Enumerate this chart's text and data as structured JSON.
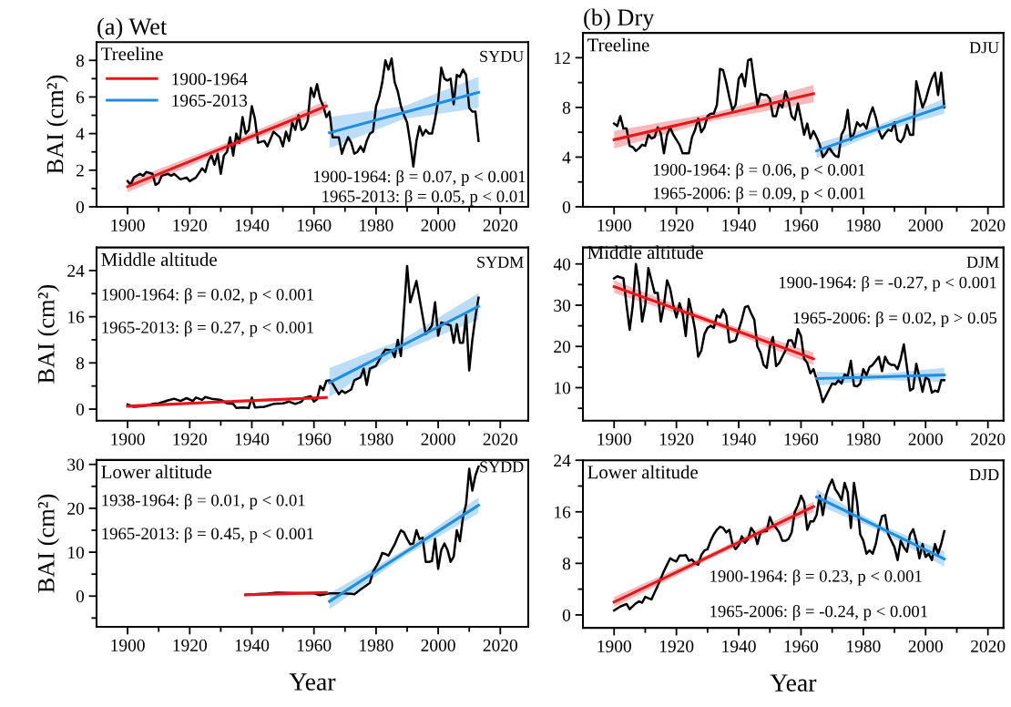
{
  "chart_data": [
    {
      "type": "line",
      "title": "(a) Wet",
      "ylabel": "BAI (cm²)",
      "xlim": [
        1890,
        2029
      ],
      "ylim": [
        0,
        9
      ],
      "xticks": [
        1900,
        {
          "value": 1910,
          "label": null
        },
        1920,
        {
          "value": 1930,
          "label": null
        },
        1940,
        {
          "value": 1950,
          "label": null
        },
        1960,
        {
          "value": 1970,
          "label": null
        },
        1980,
        {
          "value": 1990,
          "label": null
        },
        2000,
        {
          "value": 2010,
          "label": null
        },
        2020
      ],
      "yticks": [
        0,
        {
          "value": 1,
          "label": null
        },
        2,
        {
          "value": 3,
          "label": null
        },
        4,
        {
          "value": 5,
          "label": null
        },
        6,
        {
          "value": 7,
          "label": null
        },
        8
      ],
      "legend": "top left",
      "annotations": [
        "Treeline",
        "SYDU",
        "1900-1964: β = 0.07, p < 0.001",
        "1965-2013: β = 0.05, p < 0.01"
      ],
      "series": [
        {
          "type": "line",
          "color": "#000000",
          "x": [
            1900,
            1901,
            1902,
            1904,
            1905,
            1906,
            1908,
            1909,
            1910,
            1911,
            1913,
            1914,
            1915,
            1917,
            1919,
            1920,
            1922,
            1924,
            1925,
            1926,
            1927,
            1928,
            1929,
            1930,
            1931,
            1932,
            1933,
            1934,
            1935,
            1936,
            1937,
            1938,
            1939,
            1940,
            1941,
            1942,
            1944,
            1945,
            1947,
            1949,
            1950,
            1951,
            1952,
            1953,
            1954,
            1955,
            1956,
            1957,
            1958,
            1959,
            1960,
            1961,
            1962,
            1963,
            1964,
            1965,
            1966,
            1968,
            1969,
            1970,
            1971,
            1972,
            1973,
            1974,
            1975,
            1976,
            1977,
            1978,
            1979,
            1980,
            1981,
            1982,
            1983,
            1984,
            1985,
            1986,
            1987,
            1988,
            1989,
            1990,
            1991,
            1992,
            1993,
            1994,
            1995,
            1996,
            1997,
            1998,
            1999,
            2000,
            2001,
            2002,
            2003,
            2004,
            2005,
            2006,
            2007,
            2008,
            2009,
            2010,
            2011,
            2012,
            2013
          ],
          "values": [
            1.4,
            1.2,
            1.6,
            1.8,
            1.7,
            1.9,
            1.8,
            1.2,
            1.3,
            1.7,
            1.8,
            1.7,
            1.8,
            1.5,
            1.6,
            1.4,
            1.6,
            2.1,
            1.9,
            2.5,
            2.8,
            2.3,
            2.9,
            1.8,
            2.8,
            3.0,
            3.8,
            2.8,
            4.0,
            3.5,
            4.9,
            4.0,
            4.2,
            5.5,
            4.8,
            3.5,
            3.6,
            3.3,
            4.1,
            3.8,
            3.3,
            4.1,
            3.6,
            4.6,
            4.2,
            5.0,
            4.2,
            4.3,
            4.7,
            6.5,
            6.0,
            6.7,
            5.9,
            5.5,
            4.9,
            5.2,
            3.8,
            3.8,
            2.9,
            3.4,
            3.8,
            3.5,
            2.9,
            3.0,
            3.3,
            3.0,
            3.6,
            4.0,
            4.1,
            5.5,
            6.0,
            6.8,
            8.0,
            7.5,
            8.1,
            6.8,
            6.3,
            5.5,
            5.0,
            4.6,
            3.5,
            2.2,
            3.6,
            4.4,
            3.9,
            4.2,
            4.0,
            4.0,
            4.8,
            5.8,
            7.6,
            7.0,
            6.9,
            7.0,
            5.6,
            7.2,
            7.1,
            7.5,
            7.2,
            5.4,
            5.2,
            5.2,
            3.6
          ]
        },
        {
          "type": "line",
          "name": "1900-1964",
          "color": "#e8161b",
          "x": [
            1900,
            1932,
            1964
          ],
          "values": [
            1.1,
            3.3,
            5.5
          ],
          "lower": [
            0.8,
            3.1,
            5.2
          ],
          "upper": [
            1.4,
            3.5,
            5.8
          ]
        },
        {
          "type": "line",
          "name": "1965-2013",
          "color": "#1e8ee0",
          "x": [
            1965,
            1989,
            2013
          ],
          "values": [
            4.05,
            5.15,
            6.25
          ],
          "lower": [
            3.2,
            4.8,
            5.4
          ],
          "upper": [
            4.9,
            5.5,
            7.1
          ]
        }
      ]
    },
    {
      "type": "line",
      "title": "(b) Dry",
      "xlim": [
        1890,
        2025
      ],
      "ylim": [
        0,
        14
      ],
      "xticks": [
        1900,
        {
          "value": 1910,
          "label": null
        },
        1920,
        {
          "value": 1930,
          "label": null
        },
        1940,
        {
          "value": 1950,
          "label": null
        },
        1960,
        {
          "value": 1970,
          "label": null
        },
        1980,
        {
          "value": 1990,
          "label": null
        },
        2000,
        {
          "value": 2010,
          "label": null
        },
        2020
      ],
      "yticks": [
        0,
        {
          "value": 2,
          "label": null
        },
        4,
        {
          "value": 6,
          "label": null
        },
        8,
        {
          "value": 10,
          "label": null
        },
        12
      ],
      "annotations": [
        "Treeline",
        "DJU",
        "1900-1964: β = 0.06, p < 0.001",
        "1965-2006: β = 0.09, p < 0.001"
      ],
      "series": [
        {
          "type": "line",
          "color": "#000000",
          "x": [
            1900,
            1901,
            1902,
            1903,
            1904,
            1905,
            1906,
            1907,
            1908,
            1909,
            1910,
            1911,
            1912,
            1913,
            1914,
            1915,
            1916,
            1917,
            1918,
            1919,
            1921,
            1922,
            1924,
            1925,
            1926,
            1927,
            1928,
            1929,
            1930,
            1931,
            1932,
            1933,
            1934,
            1935,
            1936,
            1937,
            1938,
            1939,
            1940,
            1941,
            1942,
            1943,
            1944,
            1945,
            1946,
            1947,
            1948,
            1949,
            1950,
            1951,
            1952,
            1953,
            1954,
            1955,
            1956,
            1957,
            1958,
            1959,
            1960,
            1961,
            1962,
            1963,
            1964,
            1965,
            1966,
            1967,
            1968,
            1969,
            1970,
            1971,
            1972,
            1973,
            1974,
            1975,
            1976,
            1977,
            1978,
            1979,
            1980,
            1981,
            1982,
            1983,
            1984,
            1985,
            1986,
            1987,
            1988,
            1989,
            1990,
            1991,
            1992,
            1993,
            1994,
            1995,
            1996,
            1997,
            1998,
            1999,
            2000,
            2001,
            2002,
            2003,
            2004,
            2005,
            2006
          ],
          "values": [
            6.7,
            6.5,
            7.3,
            6.3,
            6.3,
            4.9,
            4.8,
            4.5,
            4.7,
            5.0,
            4.9,
            5.8,
            5.5,
            5.6,
            6.4,
            5.9,
            4.3,
            5.8,
            6.4,
            5.8,
            5.0,
            4.3,
            4.3,
            5.6,
            6.2,
            7.1,
            6.0,
            6.4,
            7.3,
            7.5,
            7.5,
            8.2,
            11.1,
            11.0,
            10.0,
            8.8,
            7.8,
            8.2,
            10.3,
            10.7,
            9.7,
            11.8,
            11.9,
            10.0,
            8.2,
            9.1,
            9.0,
            9.0,
            8.7,
            7.3,
            7.3,
            8.3,
            8.0,
            9.3,
            8.5,
            7.3,
            7.0,
            8.3,
            7.1,
            5.8,
            6.7,
            5.5,
            6.1,
            5.6,
            5.0,
            4.0,
            4.3,
            4.8,
            4.4,
            4.1,
            4.0,
            5.8,
            6.3,
            7.8,
            5.4,
            5.9,
            6.8,
            6.5,
            6.7,
            6.3,
            7.3,
            8.0,
            7.2,
            6.1,
            5.5,
            5.9,
            6.2,
            6.1,
            6.8,
            5.4,
            5.2,
            5.6,
            6.6,
            5.8,
            5.8,
            10.1,
            9.0,
            8.0,
            8.6,
            9.5,
            10.3,
            10.8,
            9.0,
            10.8,
            8.0
          ]
        },
        {
          "type": "line",
          "color": "#e8161b",
          "x": [
            1900,
            1932,
            1964
          ],
          "values": [
            5.4,
            7.25,
            9.1
          ],
          "lower": [
            4.7,
            6.95,
            8.4
          ],
          "upper": [
            6.1,
            7.55,
            9.8
          ]
        },
        {
          "type": "line",
          "color": "#1e8ee0",
          "x": [
            1965,
            1985,
            2006
          ],
          "values": [
            4.5,
            6.3,
            8.1
          ],
          "lower": [
            3.9,
            6.0,
            7.5
          ],
          "upper": [
            5.1,
            6.6,
            8.7
          ]
        }
      ]
    },
    {
      "type": "line",
      "ylabel": "BAI (cm²)",
      "xlim": [
        1890,
        2029
      ],
      "ylim": [
        -2,
        28
      ],
      "xticks": [
        1900,
        {
          "value": 1910,
          "label": null
        },
        1920,
        {
          "value": 1930,
          "label": null
        },
        1940,
        {
          "value": 1950,
          "label": null
        },
        1960,
        {
          "value": 1970,
          "label": null
        },
        1980,
        {
          "value": 1990,
          "label": null
        },
        2000,
        {
          "value": 2010,
          "label": null
        },
        2020
      ],
      "yticks": [
        0,
        {
          "value": 4,
          "label": null
        },
        8,
        {
          "value": 12,
          "label": null
        },
        16,
        {
          "value": 20,
          "label": null
        },
        24
      ],
      "annotations": [
        "Middle altitude",
        "SYDM",
        "1900-1964: β = 0.02, p < 0.001",
        "1965-2013: β = 0.27, p < 0.001"
      ],
      "series": [
        {
          "type": "line",
          "color": "#000000",
          "x": [
            1900,
            1902,
            1905,
            1908,
            1910,
            1913,
            1915,
            1917,
            1919,
            1921,
            1922,
            1924,
            1925,
            1927,
            1930,
            1932,
            1934,
            1935,
            1937,
            1939,
            1940,
            1941,
            1944,
            1947,
            1950,
            1952,
            1954,
            1956,
            1957,
            1959,
            1960,
            1961,
            1962,
            1963,
            1964,
            1965,
            1966,
            1968,
            1969,
            1970,
            1972,
            1973,
            1975,
            1976,
            1977,
            1978,
            1980,
            1982,
            1983,
            1985,
            1986,
            1987,
            1988,
            1989,
            1990,
            1991,
            1993,
            1996,
            1998,
            1999,
            2000,
            2001,
            2004,
            2005,
            2006,
            2007,
            2008,
            2009,
            2010,
            2011,
            2012,
            2013
          ],
          "values": [
            0.8,
            0.4,
            0.5,
            0.9,
            1.0,
            1.5,
            1.8,
            1.4,
            1.9,
            1.4,
            2.0,
            1.6,
            2.1,
            1.8,
            1.6,
            1.0,
            0.9,
            0.2,
            0.3,
            0.2,
            2.0,
            0.3,
            0.4,
            0.9,
            1.0,
            1.3,
            0.9,
            1.3,
            2.0,
            2.2,
            1.3,
            1.7,
            4.0,
            3.3,
            4.9,
            5.0,
            4.4,
            2.6,
            3.2,
            2.8,
            3.4,
            5.0,
            5.5,
            7.0,
            4.2,
            7.0,
            7.5,
            9.5,
            10.3,
            10.2,
            9.0,
            12.0,
            9.2,
            17.0,
            24.8,
            18.5,
            22.2,
            13.0,
            14.5,
            18.5,
            12.7,
            15.0,
            14.5,
            11.5,
            14.7,
            11.5,
            11.5,
            16.3,
            6.7,
            12.0,
            16.0,
            19.3
          ]
        },
        {
          "type": "line",
          "color": "#e8161b",
          "x": [
            1900,
            1932,
            1964
          ],
          "values": [
            0.5,
            1.3,
            2.0
          ],
          "lower": [
            0.2,
            1.05,
            1.7
          ],
          "upper": [
            0.8,
            1.45,
            2.3
          ]
        },
        {
          "type": "line",
          "color": "#1e8ee0",
          "x": [
            1965,
            1989,
            2013
          ],
          "values": [
            4.6,
            11.2,
            17.8
          ],
          "lower": [
            2.1,
            10.2,
            15.5
          ],
          "upper": [
            7.1,
            12.2,
            20.1
          ]
        }
      ]
    },
    {
      "type": "line",
      "xlim": [
        1890,
        2025
      ],
      "ylim": [
        2,
        44
      ],
      "xticks": [
        1900,
        {
          "value": 1910,
          "label": null
        },
        1920,
        {
          "value": 1930,
          "label": null
        },
        1940,
        {
          "value": 1950,
          "label": null
        },
        1960,
        {
          "value": 1970,
          "label": null
        },
        1980,
        {
          "value": 1990,
          "label": null
        },
        2000,
        {
          "value": 2010,
          "label": null
        },
        2020
      ],
      "yticks": [
        {
          "value": 5,
          "label": null
        },
        10,
        {
          "value": 15,
          "label": null
        },
        20,
        {
          "value": 25,
          "label": null
        },
        30,
        {
          "value": 35,
          "label": null
        },
        40
      ],
      "annotations": [
        "Middle altitude",
        "DJM",
        "1900-1964: β = -0.27, p < 0.001",
        "1965-2006: β = 0.02, p > 0.05"
      ],
      "series": [
        {
          "type": "line",
          "color": "#000000",
          "x": [
            1900,
            1901,
            1903,
            1904,
            1905,
            1906,
            1907,
            1908,
            1909,
            1910,
            1911,
            1912,
            1913,
            1914,
            1915,
            1916,
            1917,
            1918,
            1919,
            1920,
            1921,
            1922,
            1923,
            1924,
            1925,
            1926,
            1927,
            1928,
            1929,
            1930,
            1931,
            1932,
            1933,
            1934,
            1935,
            1936,
            1937,
            1939,
            1941,
            1942,
            1943,
            1944,
            1945,
            1946,
            1947,
            1948,
            1949,
            1950,
            1951,
            1952,
            1953,
            1954,
            1955,
            1956,
            1957,
            1958,
            1959,
            1960,
            1961,
            1962,
            1963,
            1964,
            1965,
            1966,
            1967,
            1969,
            1970,
            1971,
            1972,
            1973,
            1974,
            1975,
            1976,
            1977,
            1978,
            1979,
            1980,
            1981,
            1982,
            1983,
            1984,
            1985,
            1986,
            1987,
            1988,
            1989,
            1990,
            1991,
            1992,
            1993,
            1994,
            1995,
            1996,
            1997,
            1998,
            1999,
            2000,
            2001,
            2002,
            2003,
            2004,
            2005,
            2006
          ],
          "values": [
            36.5,
            37.0,
            36.5,
            30,
            24,
            30,
            40,
            35,
            26,
            30,
            39,
            36,
            33,
            33,
            26,
            30,
            36,
            34,
            30,
            27,
            30.5,
            28,
            22.5,
            31.5,
            28,
            24,
            17.5,
            19,
            23,
            24.5,
            25,
            24.5,
            27.5,
            27,
            29,
            27.5,
            21,
            21.5,
            26.5,
            29.5,
            29.8,
            28,
            26.5,
            20,
            18.5,
            15.5,
            14.8,
            20,
            22.3,
            15.2,
            16,
            17.5,
            19,
            21.5,
            21.5,
            19.8,
            24.2,
            22.5,
            17,
            16,
            13.5,
            14.5,
            12,
            9.5,
            6.5,
            9.5,
            11,
            10.8,
            11.8,
            11,
            13.2,
            12.8,
            16.5,
            10.5,
            10.3,
            11,
            14.5,
            13,
            15,
            15.5,
            16.5,
            17.5,
            14,
            17.5,
            16,
            15.5,
            15.5,
            14.5,
            17,
            20.5,
            15,
            9.3,
            9.8,
            15.8,
            12.5,
            9,
            12.5,
            12,
            8.8,
            9.3,
            9,
            11.8,
            11.8
          ]
        },
        {
          "type": "line",
          "color": "#e8161b",
          "x": [
            1900,
            1932,
            1964
          ],
          "values": [
            34.5,
            25.8,
            17.0
          ],
          "lower": [
            33.0,
            25.0,
            15.5
          ],
          "upper": [
            36.0,
            26.5,
            18.5
          ]
        },
        {
          "type": "line",
          "color": "#1e8ee0",
          "x": [
            1965,
            1985,
            2006
          ],
          "values": [
            12.2,
            12.6,
            13.1
          ],
          "lower": [
            10.5,
            11.9,
            11.4
          ],
          "upper": [
            13.9,
            13.3,
            14.8
          ]
        }
      ]
    },
    {
      "type": "line",
      "xlabel": "Year",
      "ylabel": "BAI (cm²)",
      "xlim": [
        1890,
        2029
      ],
      "ylim": [
        -7,
        31
      ],
      "xticks": [
        1900,
        {
          "value": 1910,
          "label": null
        },
        1920,
        {
          "value": 1930,
          "label": null
        },
        1940,
        {
          "value": 1950,
          "label": null
        },
        1960,
        {
          "value": 1970,
          "label": null
        },
        1980,
        {
          "value": 1990,
          "label": null
        },
        2000,
        {
          "value": 2010,
          "label": null
        },
        2020
      ],
      "yticks": [
        {
          "value": -5,
          "label": null
        },
        0,
        {
          "value": 5,
          "label": null
        },
        10,
        {
          "value": 15,
          "label": null
        },
        20,
        {
          "value": 25,
          "label": null
        },
        30
      ],
      "annotations": [
        "Lower altitude",
        "SYDD",
        "1938-1964: β = 0.01, p < 0.01",
        "1965-2013: β = 0.45, p < 0.001"
      ],
      "series": [
        {
          "type": "line",
          "color": "#000000",
          "x": [
            1938,
            1945,
            1948,
            1955,
            1960,
            1962,
            1965,
            1970,
            1972,
            1973,
            1975,
            1977,
            1978,
            1979,
            1980,
            1981,
            1982,
            1983,
            1984,
            1985,
            1986,
            1987,
            1988,
            1989,
            1990,
            1991,
            1992,
            1993,
            1994,
            1995,
            1996,
            1997,
            1998,
            1999,
            2000,
            2001,
            2002,
            2003,
            2004,
            2005,
            2006,
            2007,
            2008,
            2009,
            2010,
            2011,
            2012,
            2013
          ],
          "values": [
            0.3,
            0.6,
            0.8,
            0.7,
            0.6,
            0.2,
            0.6,
            0.6,
            0.5,
            0.4,
            1.5,
            2.5,
            3.0,
            5.5,
            6.7,
            8.0,
            9.8,
            9.6,
            9.2,
            10.5,
            11.8,
            13.5,
            15.0,
            14.5,
            13.0,
            11.8,
            12.0,
            15.0,
            13.0,
            13.3,
            7.8,
            7.8,
            8.0,
            13.0,
            6.2,
            10.5,
            12.0,
            10.5,
            7.8,
            9.0,
            15.0,
            12.5,
            18.0,
            21.0,
            29.0,
            24.0,
            27.5,
            29.5
          ]
        },
        {
          "type": "line",
          "color": "#e8161b",
          "x": [
            1938,
            1964
          ],
          "values": [
            0.3,
            0.8
          ]
        },
        {
          "type": "line",
          "color": "#1e8ee0",
          "x": [
            1965,
            1989,
            2013
          ],
          "values": [
            -1.2,
            9.8,
            20.7
          ],
          "lower": [
            -3.0,
            9.0,
            18.9
          ],
          "upper": [
            0.6,
            10.5,
            22.5
          ]
        }
      ]
    },
    {
      "type": "line",
      "xlabel": "Year",
      "xlim": [
        1890,
        2025
      ],
      "ylim": [
        -2,
        24
      ],
      "xticks": [
        1900,
        {
          "value": 1910,
          "label": null
        },
        1920,
        {
          "value": 1930,
          "label": null
        },
        1940,
        {
          "value": 1950,
          "label": null
        },
        1960,
        {
          "value": 1970,
          "label": null
        },
        1980,
        {
          "value": 1990,
          "label": null
        },
        2000,
        {
          "value": 2010,
          "label": null
        },
        2020
      ],
      "yticks": [
        0,
        {
          "value": 4,
          "label": null
        },
        8,
        {
          "value": 12,
          "label": null
        },
        16,
        {
          "value": 20,
          "label": null
        },
        24
      ],
      "annotations": [
        "Lower altitude",
        "DJD",
        "1900-1964: β = 0.23, p < 0.001",
        "1965-2006: β = -0.24, p < 0.001"
      ],
      "series": [
        {
          "type": "line",
          "color": "#000000",
          "x": [
            1900,
            1902,
            1904,
            1905,
            1907,
            1908,
            1909,
            1910,
            1911,
            1912,
            1913,
            1914,
            1916,
            1918,
            1919,
            1920,
            1921,
            1922,
            1923,
            1924,
            1925,
            1926,
            1927,
            1928,
            1929,
            1930,
            1931,
            1932,
            1933,
            1934,
            1935,
            1936,
            1937,
            1938,
            1939,
            1940,
            1941,
            1942,
            1943,
            1944,
            1945,
            1946,
            1947,
            1948,
            1949,
            1950,
            1951,
            1952,
            1953,
            1954,
            1955,
            1956,
            1957,
            1958,
            1959,
            1960,
            1961,
            1962,
            1963,
            1964,
            1965,
            1966,
            1967,
            1968,
            1969,
            1970,
            1971,
            1972,
            1973,
            1974,
            1975,
            1976,
            1977,
            1978,
            1979,
            1980,
            1981,
            1982,
            1983,
            1984,
            1985,
            1986,
            1987,
            1988,
            1989,
            1990,
            1991,
            1992,
            1993,
            1994,
            1995,
            1996,
            1997,
            1998,
            1999,
            2000,
            2001,
            2002,
            2003,
            2004,
            2005,
            2006
          ],
          "values": [
            0.7,
            1.3,
            1.7,
            0.9,
            1.8,
            2.1,
            1.9,
            2.8,
            2.6,
            2.4,
            3.5,
            4.5,
            6.8,
            8.8,
            8.5,
            8.3,
            9.2,
            9.2,
            9.3,
            8.4,
            8.6,
            8.0,
            7.8,
            9.3,
            10.0,
            10.2,
            11.5,
            12.5,
            13.2,
            13.7,
            13.5,
            12.8,
            13.2,
            11.0,
            10.2,
            10.8,
            12.2,
            11.2,
            11.8,
            13.5,
            12.8,
            11.0,
            12.8,
            13.0,
            13.0,
            15.2,
            14.0,
            13.5,
            12.8,
            11.5,
            11.5,
            11.8,
            12.8,
            16.0,
            17.0,
            18.5,
            17.5,
            13.2,
            14.5,
            14.5,
            15.5,
            18.5,
            15.5,
            18.5,
            20.0,
            21.0,
            19.5,
            18.8,
            17.8,
            20.5,
            19.0,
            13.5,
            20.5,
            17.5,
            12.5,
            11.5,
            9.5,
            10.0,
            9.5,
            11.0,
            13.5,
            15.3,
            15.5,
            12.5,
            11.5,
            10.5,
            8.5,
            11.5,
            10.5,
            9.8,
            12.5,
            13.3,
            11.5,
            8.8,
            11.0,
            9.0,
            9.5,
            8.5,
            11.0,
            9.5,
            11.0,
            13.0
          ]
        },
        {
          "type": "line",
          "color": "#e8161b",
          "x": [
            1900,
            1932,
            1964
          ],
          "values": [
            2.0,
            9.4,
            16.8
          ],
          "lower": [
            1.2,
            9.0,
            16.0
          ],
          "upper": [
            2.8,
            9.8,
            17.6
          ]
        },
        {
          "type": "line",
          "color": "#1e8ee0",
          "x": [
            1965,
            1985,
            2006
          ],
          "values": [
            18.3,
            13.6,
            8.7
          ],
          "lower": [
            17.1,
            13.1,
            7.5
          ],
          "upper": [
            19.5,
            14.1,
            9.9
          ]
        }
      ]
    }
  ]
}
